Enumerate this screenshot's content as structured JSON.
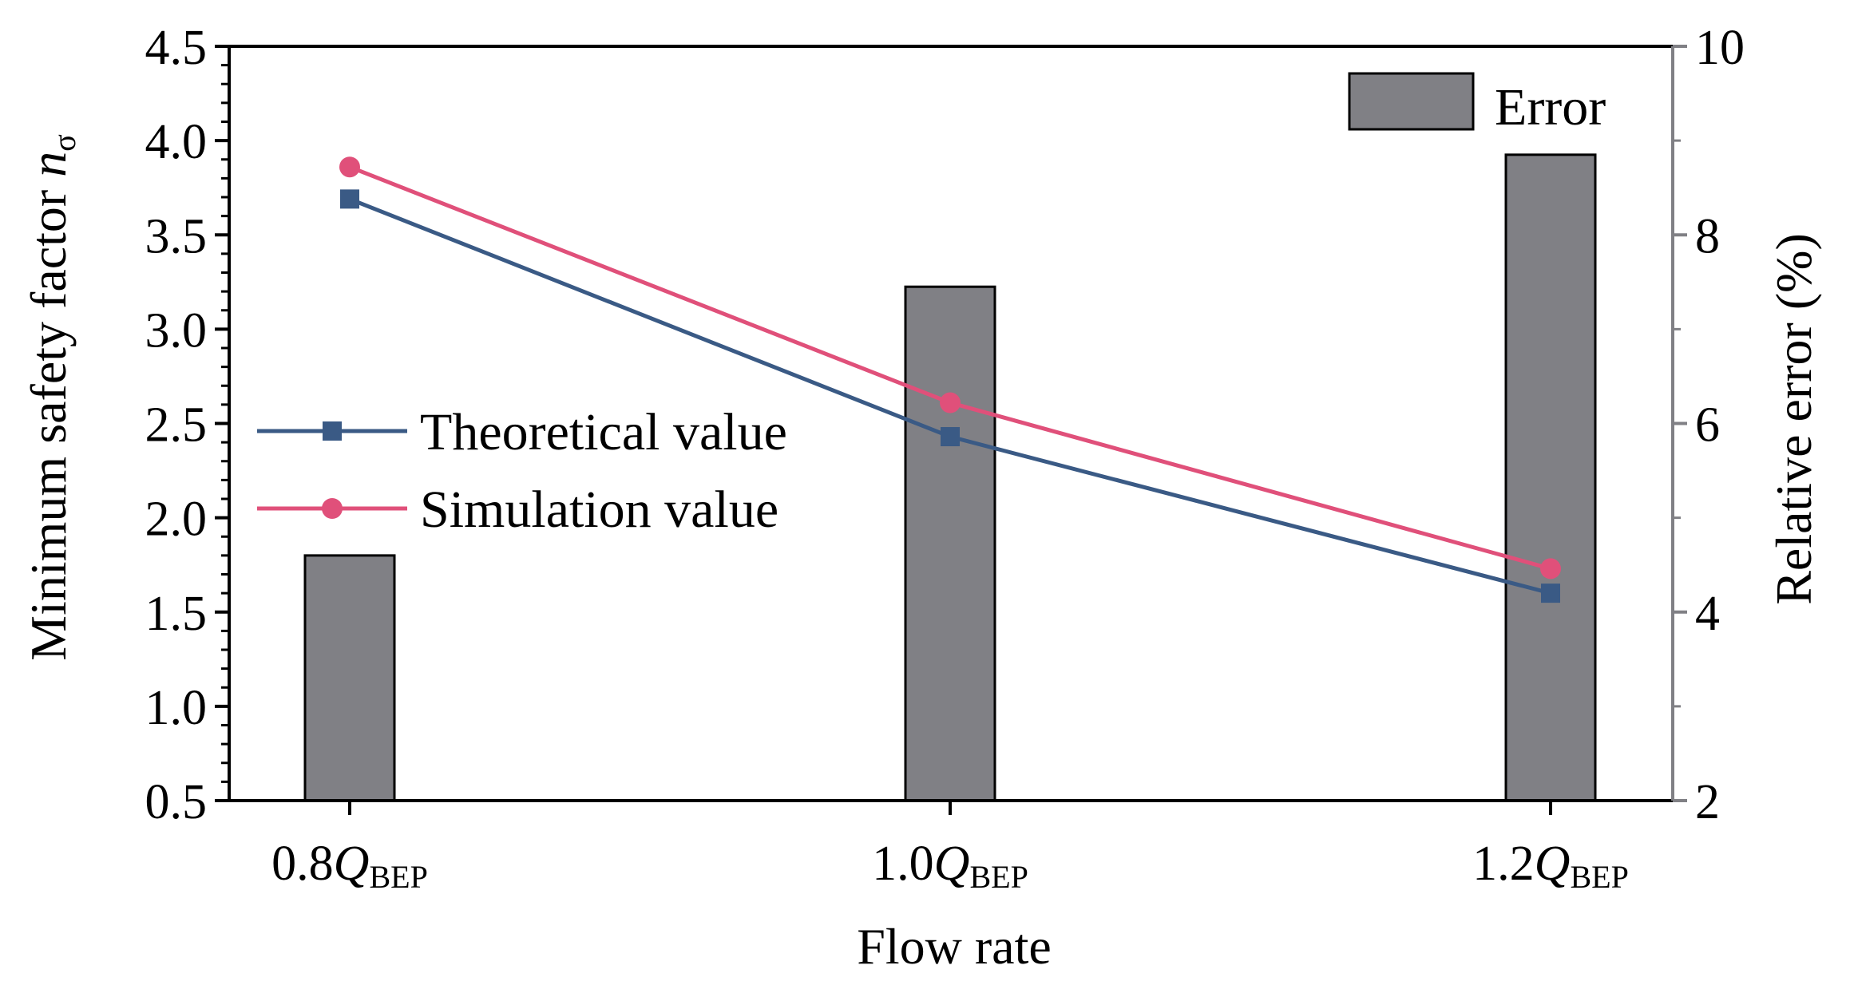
{
  "chart_data": {
    "type": "bar+line",
    "categories": [
      {
        "base": "0.8",
        "sym": "Q",
        "sub": "BEP"
      },
      {
        "base": "1.0",
        "sym": "Q",
        "sub": "BEP"
      },
      {
        "base": "1.2",
        "sym": "Q",
        "sub": "BEP"
      }
    ],
    "xlabel": "Flow rate",
    "ylabel_left": {
      "text": "Minimum safety factor ",
      "sym": "n",
      "sub": "σ"
    },
    "ylabel_right": "Relative error (%)",
    "ylim_left": [
      0.5,
      4.5
    ],
    "ylim_right": [
      2,
      10
    ],
    "yticks_left": [
      "0.5",
      "1.0",
      "1.5",
      "2.0",
      "2.5",
      "3.0",
      "3.5",
      "4.0",
      "4.5"
    ],
    "yticks_right": [
      "2",
      "4",
      "6",
      "8",
      "10"
    ],
    "bars": {
      "name": "Error",
      "axis": "right",
      "values": [
        4.6,
        7.45,
        8.85
      ],
      "color": "#808085"
    },
    "series": [
      {
        "name": "Theoretical value",
        "axis": "left",
        "values": [
          3.69,
          2.43,
          1.6
        ],
        "color": "#3a5a85",
        "marker": "square"
      },
      {
        "name": "Simulation value",
        "axis": "left",
        "values": [
          3.86,
          2.61,
          1.73
        ],
        "color": "#e0507a",
        "marker": "circle"
      }
    ],
    "legend_bar_position": "top-right",
    "legend_lines_position": "center-left"
  }
}
